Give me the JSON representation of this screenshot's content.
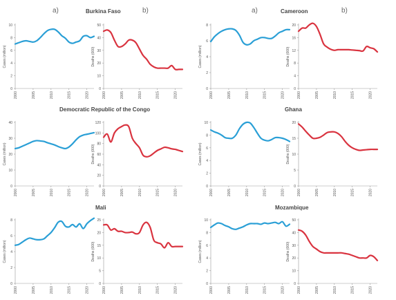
{
  "panel_labels": {
    "a": "a)",
    "b": "b)"
  },
  "countries": [
    {
      "name": "Burkina Faso"
    },
    {
      "name": "Cameroon"
    },
    {
      "name": "Democratic Republic of the Congo"
    },
    {
      "name": "Ghana"
    },
    {
      "name": "Mali"
    },
    {
      "name": "Mozambique"
    }
  ],
  "colors": {
    "cases": "#2a9fd6",
    "deaths": "#d9333f",
    "axis": "#999999",
    "text": "#555555"
  },
  "chart_data": [
    {
      "type": "line",
      "country": "Burkina Faso",
      "panel": "a)",
      "ylabel": "Cases (million)",
      "ylim": [
        0,
        10
      ],
      "yticks": [
        0,
        2,
        4,
        6,
        8,
        10
      ],
      "xlim": [
        2000,
        2022
      ],
      "xticks": [
        "2000",
        "2005",
        "2010",
        "2015",
        "2020"
      ],
      "x": [
        2000,
        2001,
        2002,
        2003,
        2004,
        2005,
        2006,
        2007,
        2008,
        2009,
        2010,
        2011,
        2012,
        2013,
        2014,
        2015,
        2016,
        2017,
        2018,
        2019,
        2020,
        2021,
        2022
      ],
      "series": [
        {
          "values": [
            7.0,
            7.2,
            7.4,
            7.5,
            7.4,
            7.3,
            7.5,
            8.0,
            8.6,
            9.1,
            9.3,
            9.3,
            8.9,
            8.3,
            7.9,
            7.3,
            7.1,
            7.3,
            7.5,
            8.2,
            8.3,
            8.0,
            8.2
          ]
        }
      ]
    },
    {
      "type": "line",
      "country": "Burkina Faso",
      "panel": "b)",
      "ylabel": "Deaths (000)",
      "ylim": [
        0,
        50
      ],
      "yticks": [
        0,
        10,
        20,
        30,
        40,
        50
      ],
      "xlim": [
        2000,
        2022
      ],
      "xticks": [
        "2000",
        "2005",
        "2010",
        "2015",
        "2020"
      ],
      "x": [
        2000,
        2001,
        2002,
        2003,
        2004,
        2005,
        2006,
        2007,
        2008,
        2009,
        2010,
        2011,
        2012,
        2013,
        2014,
        2015,
        2016,
        2017,
        2018,
        2019,
        2020,
        2021,
        2022
      ],
      "series": [
        {
          "values": [
            45,
            46,
            44,
            38,
            33,
            33,
            35,
            38,
            38,
            36,
            31,
            26,
            23,
            19,
            17,
            16,
            16,
            16,
            16,
            18,
            15,
            15,
            15
          ]
        }
      ]
    },
    {
      "type": "line",
      "country": "Cameroon",
      "panel": "a)",
      "ylabel": "Cases (million)",
      "ylim": [
        0,
        8
      ],
      "yticks": [
        0,
        2,
        4,
        6,
        8
      ],
      "xlim": [
        2000,
        2022
      ],
      "xticks": [
        "2000",
        "2005",
        "2010",
        "2015",
        "2020"
      ],
      "x": [
        2000,
        2001,
        2002,
        2003,
        2004,
        2005,
        2006,
        2007,
        2008,
        2009,
        2010,
        2011,
        2012,
        2013,
        2014,
        2015,
        2016,
        2017,
        2018,
        2019,
        2020,
        2021,
        2022
      ],
      "series": [
        {
          "values": [
            5.9,
            6.5,
            6.9,
            7.2,
            7.4,
            7.5,
            7.5,
            7.3,
            6.7,
            5.8,
            5.5,
            5.6,
            6.0,
            6.2,
            6.4,
            6.4,
            6.3,
            6.3,
            6.6,
            7.0,
            7.2,
            7.4,
            7.4
          ]
        }
      ]
    },
    {
      "type": "line",
      "country": "Cameroon",
      "panel": "b)",
      "ylabel": "Deaths (000)",
      "ylim": [
        0,
        20
      ],
      "yticks": [
        0,
        4,
        8,
        12,
        16,
        20
      ],
      "xlim": [
        2000,
        2022
      ],
      "xticks": [
        "2000",
        "2005",
        "2010",
        "2015",
        "2020"
      ],
      "x": [
        2000,
        2001,
        2002,
        2003,
        2004,
        2005,
        2006,
        2007,
        2008,
        2009,
        2010,
        2011,
        2012,
        2013,
        2014,
        2015,
        2016,
        2017,
        2018,
        2019,
        2020,
        2021,
        2022
      ],
      "series": [
        {
          "values": [
            18,
            19,
            19,
            20,
            20.5,
            19.5,
            17,
            14,
            13,
            12.3,
            12,
            12.2,
            12.2,
            12.2,
            12.2,
            12.1,
            12,
            11.9,
            11.8,
            13.2,
            12.8,
            12.5,
            11.5
          ]
        }
      ]
    },
    {
      "type": "line",
      "country": "Democratic Republic of the Congo",
      "panel": "a)",
      "ylabel": "Cases (million)",
      "ylim": [
        0,
        40
      ],
      "yticks": [
        0,
        10,
        20,
        30,
        40
      ],
      "xlim": [
        2000,
        2022
      ],
      "xticks": [
        "2000",
        "2005",
        "2010",
        "2015",
        "2020"
      ],
      "x": [
        2000,
        2001,
        2002,
        2003,
        2004,
        2005,
        2006,
        2007,
        2008,
        2009,
        2010,
        2011,
        2012,
        2013,
        2014,
        2015,
        2016,
        2017,
        2018,
        2019,
        2020,
        2021,
        2022
      ],
      "series": [
        {
          "values": [
            23.5,
            24,
            25,
            26,
            27,
            28,
            28.5,
            28.3,
            28,
            27.2,
            26.5,
            25.8,
            24.8,
            24,
            23.5,
            24.5,
            26.5,
            29,
            31,
            32,
            32.5,
            33,
            33.5
          ]
        }
      ]
    },
    {
      "type": "line",
      "country": "Democratic Republic of the Congo",
      "panel": "b)",
      "ylabel": "Deaths (000)",
      "ylim": [
        0,
        120
      ],
      "yticks": [
        0,
        20,
        40,
        60,
        80,
        100,
        120
      ],
      "xlim": [
        2000,
        2022
      ],
      "xticks": [
        "2000",
        "2005",
        "2010",
        "2015",
        "2020"
      ],
      "x": [
        2000,
        2001,
        2002,
        2003,
        2004,
        2005,
        2006,
        2007,
        2008,
        2009,
        2010,
        2011,
        2012,
        2013,
        2014,
        2015,
        2016,
        2017,
        2018,
        2019,
        2020,
        2021,
        2022
      ],
      "series": [
        {
          "values": [
            92,
            98,
            83,
            100,
            108,
            112,
            115,
            112,
            90,
            80,
            72,
            58,
            55,
            57,
            62,
            67,
            70,
            73,
            72,
            70,
            69,
            67,
            65
          ]
        }
      ]
    },
    {
      "type": "line",
      "country": "Ghana",
      "panel": "a)",
      "ylabel": "Cases (million)",
      "ylim": [
        0,
        10
      ],
      "yticks": [
        0,
        2,
        4,
        6,
        8,
        10
      ],
      "xlim": [
        2000,
        2022
      ],
      "xticks": [
        "2000",
        "2005",
        "2010",
        "2015",
        "2020"
      ],
      "x": [
        2000,
        2001,
        2002,
        2003,
        2004,
        2005,
        2006,
        2007,
        2008,
        2009,
        2010,
        2011,
        2012,
        2013,
        2014,
        2015,
        2016,
        2017,
        2018,
        2019,
        2020,
        2021,
        2022
      ],
      "series": [
        {
          "values": [
            8.8,
            8.5,
            8.3,
            8,
            7.6,
            7.5,
            7.5,
            8,
            9,
            9.7,
            10,
            9.9,
            9.2,
            8.3,
            7.5,
            7.2,
            7.1,
            7.3,
            7.6,
            7.6,
            7.5,
            7.3,
            7
          ]
        }
      ]
    },
    {
      "type": "line",
      "country": "Ghana",
      "panel": "b)",
      "ylabel": "Deaths (000)",
      "ylim": [
        0,
        20
      ],
      "yticks": [
        0,
        5,
        10,
        15,
        20
      ],
      "xlim": [
        2000,
        2022
      ],
      "xticks": [
        "2000",
        "2005",
        "2010",
        "2015",
        "2020"
      ],
      "x": [
        2000,
        2001,
        2002,
        2003,
        2004,
        2005,
        2006,
        2007,
        2008,
        2009,
        2010,
        2011,
        2012,
        2013,
        2014,
        2015,
        2016,
        2017,
        2018,
        2019,
        2020,
        2021,
        2022
      ],
      "series": [
        {
          "values": [
            19.5,
            18.5,
            17.2,
            16,
            15,
            15,
            15.3,
            16,
            16.8,
            17,
            17,
            16.5,
            15.5,
            14,
            12.8,
            12,
            11.5,
            11.2,
            11.3,
            11.4,
            11.5,
            11.5,
            11.5
          ]
        }
      ]
    },
    {
      "type": "line",
      "country": "Mali",
      "panel": "a)",
      "ylabel": "Cases (million)",
      "ylim": [
        0,
        8
      ],
      "yticks": [
        0,
        2,
        4,
        6,
        8
      ],
      "xlim": [
        2000,
        2022
      ],
      "xticks": [
        "2000",
        "2005",
        "2010",
        "2015",
        "2020"
      ],
      "x": [
        2000,
        2001,
        2002,
        2003,
        2004,
        2005,
        2006,
        2007,
        2008,
        2009,
        2010,
        2011,
        2012,
        2013,
        2014,
        2015,
        2016,
        2017,
        2018,
        2019,
        2020,
        2021,
        2022
      ],
      "series": [
        {
          "values": [
            4.8,
            4.9,
            5.2,
            5.5,
            5.7,
            5.6,
            5.5,
            5.5,
            5.6,
            6,
            6.4,
            7,
            7.7,
            7.8,
            7.2,
            7.1,
            7.4,
            7.1,
            7.5,
            6.9,
            7.5,
            7.9,
            8.2
          ]
        }
      ]
    },
    {
      "type": "line",
      "country": "Mali",
      "panel": "b)",
      "ylabel": "Deaths (000)",
      "ylim": [
        0,
        25
      ],
      "yticks": [
        0,
        5,
        10,
        15,
        20,
        25
      ],
      "xlim": [
        2000,
        2022
      ],
      "xticks": [
        "2000",
        "2005",
        "2010",
        "2015",
        "2020"
      ],
      "x": [
        2000,
        2001,
        2002,
        2003,
        2004,
        2005,
        2006,
        2007,
        2008,
        2009,
        2010,
        2011,
        2012,
        2013,
        2014,
        2015,
        2016,
        2017,
        2018,
        2019,
        2020,
        2021,
        2022
      ],
      "series": [
        {
          "values": [
            23,
            23,
            21,
            21.5,
            20.5,
            20.5,
            20,
            20,
            20.2,
            19.5,
            20,
            23,
            24,
            22,
            17,
            16,
            15.5,
            14,
            16,
            14.5,
            14.5,
            14.5,
            14.5
          ]
        }
      ]
    },
    {
      "type": "line",
      "country": "Mozambique",
      "panel": "a)",
      "ylabel": "Cases (million)",
      "ylim": [
        0,
        10
      ],
      "yticks": [
        0,
        2,
        4,
        6,
        8,
        10
      ],
      "xlim": [
        2000,
        2022
      ],
      "xticks": [
        "2000",
        "2005",
        "2010",
        "2015",
        "2020"
      ],
      "x": [
        2000,
        2001,
        2002,
        2003,
        2004,
        2005,
        2006,
        2007,
        2008,
        2009,
        2010,
        2011,
        2012,
        2013,
        2014,
        2015,
        2016,
        2017,
        2018,
        2019,
        2020,
        2021,
        2022
      ],
      "series": [
        {
          "values": [
            8.8,
            9.2,
            9.5,
            9.4,
            9.1,
            8.9,
            8.6,
            8.5,
            8.7,
            8.9,
            9.2,
            9.4,
            9.4,
            9.4,
            9.3,
            9.5,
            9.4,
            9.5,
            9.6,
            9.4,
            9.7,
            9,
            9.3
          ]
        }
      ]
    },
    {
      "type": "line",
      "country": "Mozambique",
      "panel": "b)",
      "ylabel": "Deaths (000)",
      "ylim": [
        0,
        50
      ],
      "yticks": [
        0,
        10,
        20,
        30,
        40,
        50
      ],
      "xlim": [
        2000,
        2022
      ],
      "xticks": [
        "2000",
        "2005",
        "2010",
        "2015",
        "2020"
      ],
      "x": [
        2000,
        2001,
        2002,
        2003,
        2004,
        2005,
        2006,
        2007,
        2008,
        2009,
        2010,
        2011,
        2012,
        2013,
        2014,
        2015,
        2016,
        2017,
        2018,
        2019,
        2020,
        2021,
        2022
      ],
      "series": [
        {
          "values": [
            42,
            41,
            38,
            33,
            29,
            27,
            25,
            24,
            24,
            24,
            24,
            24,
            24,
            23.5,
            23,
            22,
            21,
            20,
            20,
            20,
            22,
            21,
            18
          ]
        }
      ]
    }
  ]
}
